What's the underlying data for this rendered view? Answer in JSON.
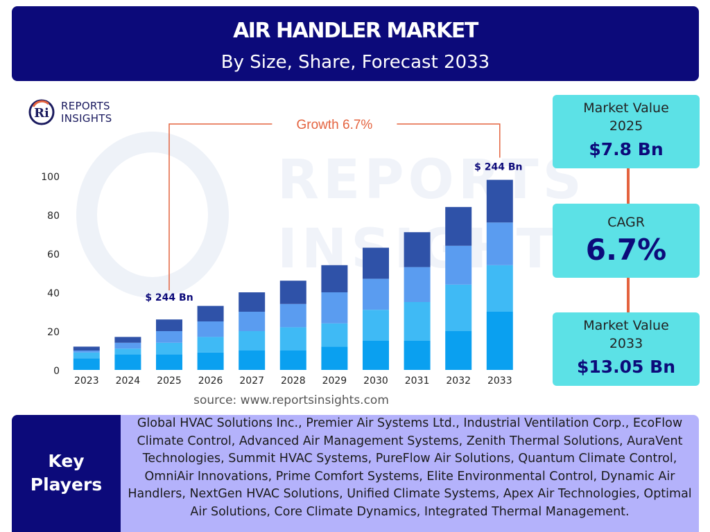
{
  "header": {
    "title": "AIR HANDLER MARKET",
    "subtitle": "By Size, Share, Forecast 2033"
  },
  "logo": {
    "mark": "Ri",
    "line1": "REPORTS",
    "line2": "INSIGHTS"
  },
  "watermark": {
    "text": "REPORTS INSIGHTS"
  },
  "colors": {
    "header_bg": "#0c0a7a",
    "stat_bg": "#5ce1e6",
    "connector": "#e4633f",
    "players_bg": "#b4b2fb",
    "segment_colors": [
      "#0aa0f0",
      "#3fbaf5",
      "#5a9cf0",
      "#2f52a8"
    ]
  },
  "chart_data": {
    "type": "bar",
    "stacked": true,
    "categories": [
      "2023",
      "2024",
      "2025",
      "2026",
      "2027",
      "2028",
      "2029",
      "2030",
      "2031",
      "2032",
      "2033"
    ],
    "series": [
      {
        "values": [
          6,
          8,
          8,
          9,
          10,
          10,
          12,
          15,
          15,
          20,
          30
        ]
      },
      {
        "values": [
          3,
          3,
          6,
          8,
          10,
          12,
          12,
          16,
          20,
          24,
          24
        ]
      },
      {
        "values": [
          1,
          3,
          6,
          8,
          10,
          12,
          16,
          16,
          18,
          20,
          22
        ]
      },
      {
        "values": [
          2,
          3,
          6,
          8,
          10,
          12,
          14,
          16,
          18,
          20,
          22
        ]
      }
    ],
    "yticks": [
      0,
      20,
      40,
      60,
      80,
      100
    ],
    "ylim": [
      0,
      100
    ],
    "annotations": {
      "start_label": "$ 244 Bn",
      "end_label": "$ 244 Bn",
      "growth_label": "Growth",
      "growth_value": "6.7%"
    }
  },
  "source": "source: www.reportsinsights.com",
  "stats": {
    "market_value_2025": {
      "label_line1": "Market Value",
      "label_line2": "2025",
      "value": "$7.8 Bn"
    },
    "cagr": {
      "label": "CAGR",
      "value": "6.7%"
    },
    "market_value_2033": {
      "label_line1": "Market Value",
      "label_line2": "2033",
      "value": "$13.05 Bn"
    }
  },
  "key_players": {
    "label_line1": "Key",
    "label_line2": "Players",
    "list": "Global HVAC Solutions Inc., Premier Air Systems Ltd., Industrial Ventilation Corp., EcoFlow Climate Control, Advanced Air Management Systems, Zenith Thermal Solutions, AuraVent Technologies, Summit HVAC Systems, PureFlow Air Solutions, Quantum Climate Control, OmniAir Innovations, Prime Comfort Systems, Elite Environmental Control, Dynamic Air Handlers, NextGen HVAC Solutions, Unified Climate Systems, Apex Air Technologies, Optimal Air Solutions, Core Climate Dynamics, Integrated Thermal Management."
  }
}
